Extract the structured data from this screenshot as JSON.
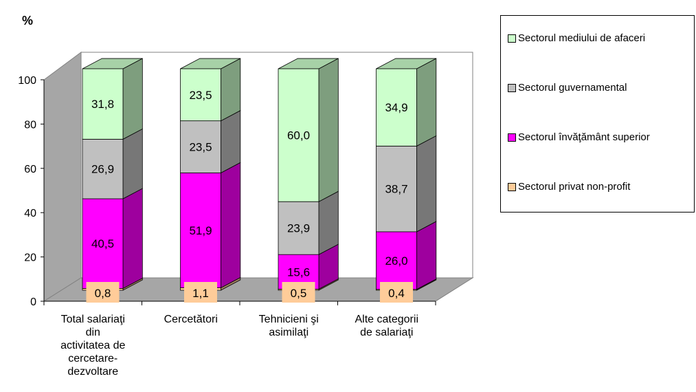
{
  "chart_data": {
    "type": "bar",
    "stacked": true,
    "three_d": true,
    "ylabel": "%",
    "ylim": [
      0,
      100
    ],
    "yticks": [
      "0",
      "20",
      "40",
      "60",
      "80",
      "100"
    ],
    "categories": [
      "Total salariaţi din activitatea de cercetare-dezvoltare",
      "Cercetători",
      "Tehnicieni şi asimilaţi",
      "Alte categorii de salariaţi"
    ],
    "category_lines": [
      [
        "Total salariaţi",
        "din",
        "activitatea de",
        "cercetare-",
        "dezvoltare"
      ],
      [
        "Cercetători"
      ],
      [
        "Tehnicieni şi",
        "asimilaţi"
      ],
      [
        "Alte categorii",
        "de salariaţi"
      ]
    ],
    "series": [
      {
        "name": "Sectorul privat non-profit",
        "color": "#FFCC99",
        "values": [
          0.8,
          1.1,
          0.5,
          0.4
        ],
        "labels": [
          "0,8",
          "1,1",
          "0,5",
          "0,4"
        ]
      },
      {
        "name": "Sectorul învăţământ superior",
        "color": "#FF00FF",
        "values": [
          40.5,
          51.9,
          15.6,
          26.0
        ],
        "labels": [
          "40,5",
          "51,9",
          "15,6",
          "26,0"
        ]
      },
      {
        "name": "Sectorul guvernamental",
        "color": "#C0C0C0",
        "values": [
          26.9,
          23.5,
          23.9,
          38.7
        ],
        "labels": [
          "26,9",
          "23,5",
          "23,9",
          "38,7"
        ]
      },
      {
        "name": "Sectorul mediului de afaceri",
        "color": "#CCFFCC",
        "values": [
          31.8,
          23.5,
          60.0,
          34.9
        ],
        "labels": [
          "31,8",
          "23,5",
          "60,0",
          "34,9"
        ]
      }
    ],
    "legend_position": "right",
    "legend_order": [
      3,
      2,
      1,
      0
    ],
    "grid": false
  }
}
